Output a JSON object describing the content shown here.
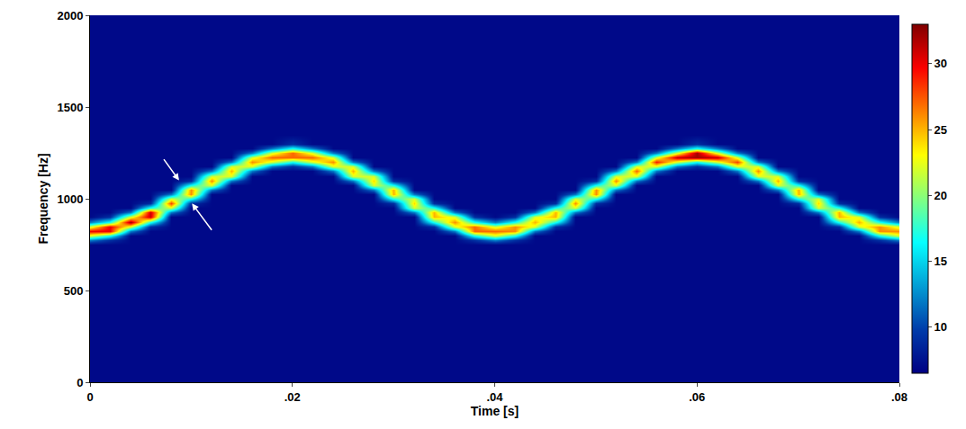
{
  "chart_data": {
    "type": "heatmap",
    "x_label": "Time [s]",
    "y_label": "Frequency [Hz]",
    "color": "Jet",
    "xlim": [
      0,
      0.08
    ],
    "xticks": [
      0,
      {
        "value": 0.02,
        "label": ".02"
      },
      {
        "value": 0.04,
        "label": ".04"
      },
      {
        "value": 0.06,
        "label": ".06"
      },
      {
        "value": 0.08,
        "label": ".08"
      }
    ],
    "ylim": [
      0,
      2000
    ],
    "yticks": [
      0,
      500,
      1000,
      1500,
      2000
    ],
    "colorbar": {
      "range": [
        6.5,
        33
      ],
      "ticks": [
        10,
        15,
        20,
        25,
        30
      ]
    },
    "x": [
      0,
      0.002,
      0.004,
      0.006,
      0.008,
      0.01,
      0.012,
      0.014,
      0.016,
      0.018,
      0.02,
      0.022,
      0.024,
      0.026,
      0.028,
      0.03,
      0.032,
      0.034,
      0.036,
      0.038,
      0.04,
      0.042,
      0.044,
      0.046,
      0.048,
      0.05,
      0.052,
      0.054,
      0.056,
      0.058,
      0.06,
      0.062,
      0.064,
      0.066,
      0.068,
      0.07,
      0.072,
      0.074,
      0.076,
      0.078,
      0.08
    ],
    "y": [
      0,
      700,
      750,
      775,
      800,
      825,
      850,
      875,
      900,
      925,
      950,
      975,
      1000,
      1025,
      1050,
      1075,
      1100,
      1125,
      1150,
      1175,
      1200,
      1225,
      1250,
      1275,
      1300,
      1350,
      2000
    ],
    "z": [
      [
        7,
        7,
        7,
        12,
        22,
        30,
        22,
        12,
        7,
        7,
        7,
        7,
        7,
        7,
        7,
        7,
        7,
        7,
        7,
        7,
        7,
        7,
        7,
        7,
        7,
        7,
        7
      ],
      [
        7,
        7,
        7,
        9,
        17,
        30,
        30,
        17,
        9,
        7,
        7,
        7,
        7,
        7,
        7,
        7,
        7,
        7,
        7,
        7,
        7,
        7,
        7,
        7,
        7,
        7,
        7
      ],
      [
        7,
        7,
        7,
        7,
        7,
        12,
        22,
        32,
        22,
        12,
        7,
        7,
        7,
        7,
        7,
        7,
        7,
        7,
        7,
        7,
        7,
        7,
        7,
        7,
        7,
        7,
        7
      ],
      [
        7,
        7,
        7,
        7,
        7,
        7,
        9,
        17,
        31,
        31,
        17,
        9,
        7,
        7,
        7,
        7,
        7,
        7,
        7,
        7,
        7,
        7,
        7,
        7,
        7,
        7,
        7
      ],
      [
        7,
        7,
        7,
        7,
        7,
        7,
        7,
        7,
        7,
        12,
        22,
        28,
        22,
        12,
        7,
        7,
        7,
        7,
        7,
        7,
        7,
        7,
        7,
        7,
        7,
        7,
        7
      ],
      [
        7,
        7,
        7,
        7,
        7,
        7,
        7,
        7,
        7,
        7,
        7,
        9,
        17,
        26,
        26,
        17,
        9,
        7,
        7,
        7,
        7,
        7,
        7,
        7,
        7,
        7,
        7
      ],
      [
        7,
        7,
        7,
        7,
        7,
        7,
        7,
        7,
        7,
        7,
        7,
        7,
        7,
        7,
        12,
        22,
        26,
        22,
        12,
        7,
        7,
        7,
        7,
        7,
        7,
        7,
        7
      ],
      [
        7,
        7,
        7,
        7,
        7,
        7,
        7,
        7,
        7,
        7,
        7,
        7,
        7,
        7,
        7,
        7,
        12,
        22,
        25,
        22,
        12,
        7,
        7,
        7,
        7,
        7,
        7
      ],
      [
        7,
        7,
        7,
        7,
        7,
        7,
        7,
        7,
        7,
        7,
        7,
        7,
        7,
        7,
        7,
        7,
        7,
        7,
        12,
        22,
        26,
        22,
        12,
        7,
        7,
        7,
        7
      ],
      [
        7,
        7,
        7,
        7,
        7,
        7,
        7,
        7,
        7,
        7,
        7,
        7,
        7,
        7,
        7,
        7,
        7,
        7,
        7,
        12,
        22,
        27,
        22,
        12,
        7,
        7,
        7
      ],
      [
        7,
        7,
        7,
        7,
        7,
        7,
        7,
        7,
        7,
        7,
        7,
        7,
        7,
        7,
        7,
        7,
        7,
        7,
        7,
        9,
        17,
        27,
        27,
        17,
        9,
        7,
        7
      ],
      [
        7,
        7,
        7,
        7,
        7,
        7,
        7,
        7,
        7,
        7,
        7,
        7,
        7,
        7,
        7,
        7,
        7,
        7,
        7,
        12,
        22,
        27,
        22,
        12,
        7,
        7,
        7
      ],
      [
        7,
        7,
        7,
        7,
        7,
        7,
        7,
        7,
        7,
        7,
        7,
        7,
        7,
        7,
        7,
        7,
        7,
        7,
        12,
        22,
        26,
        22,
        12,
        7,
        7,
        7,
        7
      ],
      [
        7,
        7,
        7,
        7,
        7,
        7,
        7,
        7,
        7,
        7,
        7,
        7,
        7,
        7,
        7,
        7,
        12,
        22,
        25,
        22,
        12,
        7,
        7,
        7,
        7,
        7,
        7
      ],
      [
        7,
        7,
        7,
        7,
        7,
        7,
        7,
        7,
        7,
        7,
        7,
        7,
        7,
        7,
        12,
        22,
        24,
        22,
        12,
        7,
        7,
        7,
        7,
        7,
        7,
        7,
        7
      ],
      [
        7,
        7,
        7,
        7,
        7,
        7,
        7,
        7,
        7,
        7,
        7,
        9,
        17,
        25,
        25,
        17,
        9,
        7,
        7,
        7,
        7,
        7,
        7,
        7,
        7,
        7,
        7
      ],
      [
        7,
        7,
        7,
        7,
        7,
        7,
        7,
        7,
        7,
        12,
        22,
        24,
        22,
        12,
        7,
        7,
        7,
        7,
        7,
        7,
        7,
        7,
        7,
        7,
        7,
        7,
        7
      ],
      [
        7,
        7,
        7,
        7,
        7,
        7,
        9,
        17,
        25,
        25,
        17,
        9,
        7,
        7,
        7,
        7,
        7,
        7,
        7,
        7,
        7,
        7,
        7,
        7,
        7,
        7,
        7
      ],
      [
        7,
        7,
        7,
        7,
        7,
        12,
        22,
        26,
        22,
        12,
        7,
        7,
        7,
        7,
        7,
        7,
        7,
        7,
        7,
        7,
        7,
        7,
        7,
        7,
        7,
        7,
        7
      ],
      [
        7,
        7,
        7,
        9,
        17,
        27,
        27,
        17,
        9,
        7,
        7,
        7,
        7,
        7,
        7,
        7,
        7,
        7,
        7,
        7,
        7,
        7,
        7,
        7,
        7,
        7,
        7
      ],
      [
        7,
        7,
        7,
        12,
        22,
        27,
        22,
        12,
        7,
        7,
        7,
        7,
        7,
        7,
        7,
        7,
        7,
        7,
        7,
        7,
        7,
        7,
        7,
        7,
        7,
        7,
        7
      ],
      [
        7,
        7,
        7,
        9,
        17,
        26,
        26,
        17,
        9,
        7,
        7,
        7,
        7,
        7,
        7,
        7,
        7,
        7,
        7,
        7,
        7,
        7,
        7,
        7,
        7,
        7,
        7
      ],
      [
        7,
        7,
        7,
        7,
        7,
        12,
        22,
        25,
        22,
        12,
        7,
        7,
        7,
        7,
        7,
        7,
        7,
        7,
        7,
        7,
        7,
        7,
        7,
        7,
        7,
        7,
        7
      ],
      [
        7,
        7,
        7,
        7,
        7,
        7,
        9,
        17,
        25,
        25,
        17,
        9,
        7,
        7,
        7,
        7,
        7,
        7,
        7,
        7,
        7,
        7,
        7,
        7,
        7,
        7,
        7
      ],
      [
        7,
        7,
        7,
        7,
        7,
        7,
        7,
        7,
        7,
        12,
        22,
        26,
        22,
        12,
        7,
        7,
        7,
        7,
        7,
        7,
        7,
        7,
        7,
        7,
        7,
        7,
        7
      ],
      [
        7,
        7,
        7,
        7,
        7,
        7,
        7,
        7,
        7,
        7,
        7,
        9,
        17,
        26,
        26,
        17,
        9,
        7,
        7,
        7,
        7,
        7,
        7,
        7,
        7,
        7,
        7
      ],
      [
        7,
        7,
        7,
        7,
        7,
        7,
        7,
        7,
        7,
        7,
        7,
        7,
        7,
        7,
        12,
        22,
        26,
        22,
        12,
        7,
        7,
        7,
        7,
        7,
        7,
        7,
        7
      ],
      [
        7,
        7,
        7,
        7,
        7,
        7,
        7,
        7,
        7,
        7,
        7,
        7,
        7,
        7,
        7,
        7,
        12,
        22,
        27,
        22,
        12,
        7,
        7,
        7,
        7,
        7,
        7
      ],
      [
        7,
        7,
        7,
        7,
        7,
        7,
        7,
        7,
        7,
        7,
        7,
        7,
        7,
        7,
        7,
        7,
        7,
        7,
        12,
        22,
        29,
        22,
        12,
        7,
        7,
        7,
        7
      ],
      [
        7,
        7,
        7,
        7,
        7,
        7,
        7,
        7,
        7,
        7,
        7,
        7,
        7,
        7,
        7,
        7,
        7,
        7,
        7,
        12,
        22,
        31,
        22,
        12,
        7,
        7,
        7
      ],
      [
        7,
        7,
        7,
        7,
        7,
        7,
        7,
        7,
        7,
        7,
        7,
        7,
        7,
        7,
        7,
        7,
        7,
        7,
        7,
        9,
        17,
        32,
        32,
        17,
        9,
        7,
        7
      ],
      [
        7,
        7,
        7,
        7,
        7,
        7,
        7,
        7,
        7,
        7,
        7,
        7,
        7,
        7,
        7,
        7,
        7,
        7,
        7,
        12,
        22,
        31,
        22,
        12,
        7,
        7,
        7
      ],
      [
        7,
        7,
        7,
        7,
        7,
        7,
        7,
        7,
        7,
        7,
        7,
        7,
        7,
        7,
        7,
        7,
        7,
        7,
        12,
        22,
        28,
        22,
        12,
        7,
        7,
        7,
        7
      ],
      [
        7,
        7,
        7,
        7,
        7,
        7,
        7,
        7,
        7,
        7,
        7,
        7,
        7,
        7,
        7,
        7,
        12,
        22,
        26,
        22,
        12,
        7,
        7,
        7,
        7,
        7,
        7
      ],
      [
        7,
        7,
        7,
        7,
        7,
        7,
        7,
        7,
        7,
        7,
        7,
        7,
        7,
        7,
        12,
        22,
        25,
        22,
        12,
        7,
        7,
        7,
        7,
        7,
        7,
        7,
        7
      ],
      [
        7,
        7,
        7,
        7,
        7,
        7,
        7,
        7,
        7,
        7,
        7,
        9,
        17,
        25,
        25,
        17,
        9,
        7,
        7,
        7,
        7,
        7,
        7,
        7,
        7,
        7,
        7
      ],
      [
        7,
        7,
        7,
        7,
        7,
        7,
        7,
        7,
        7,
        12,
        22,
        24,
        22,
        12,
        7,
        7,
        7,
        7,
        7,
        7,
        7,
        7,
        7,
        7,
        7,
        7,
        7
      ],
      [
        7,
        7,
        7,
        7,
        7,
        7,
        9,
        17,
        25,
        25,
        17,
        9,
        7,
        7,
        7,
        7,
        7,
        7,
        7,
        7,
        7,
        7,
        7,
        7,
        7,
        7,
        7
      ],
      [
        7,
        7,
        7,
        7,
        7,
        12,
        22,
        25,
        22,
        12,
        7,
        7,
        7,
        7,
        7,
        7,
        7,
        7,
        7,
        7,
        7,
        7,
        7,
        7,
        7,
        7,
        7
      ],
      [
        7,
        7,
        7,
        9,
        17,
        26,
        26,
        17,
        9,
        7,
        7,
        7,
        7,
        7,
        7,
        7,
        7,
        7,
        7,
        7,
        7,
        7,
        7,
        7,
        7,
        7,
        7
      ],
      [
        7,
        7,
        7,
        12,
        22,
        26,
        22,
        12,
        7,
        7,
        7,
        7,
        7,
        7,
        7,
        7,
        7,
        7,
        7,
        7,
        7,
        7,
        7,
        7,
        7,
        7,
        7
      ]
    ]
  }
}
